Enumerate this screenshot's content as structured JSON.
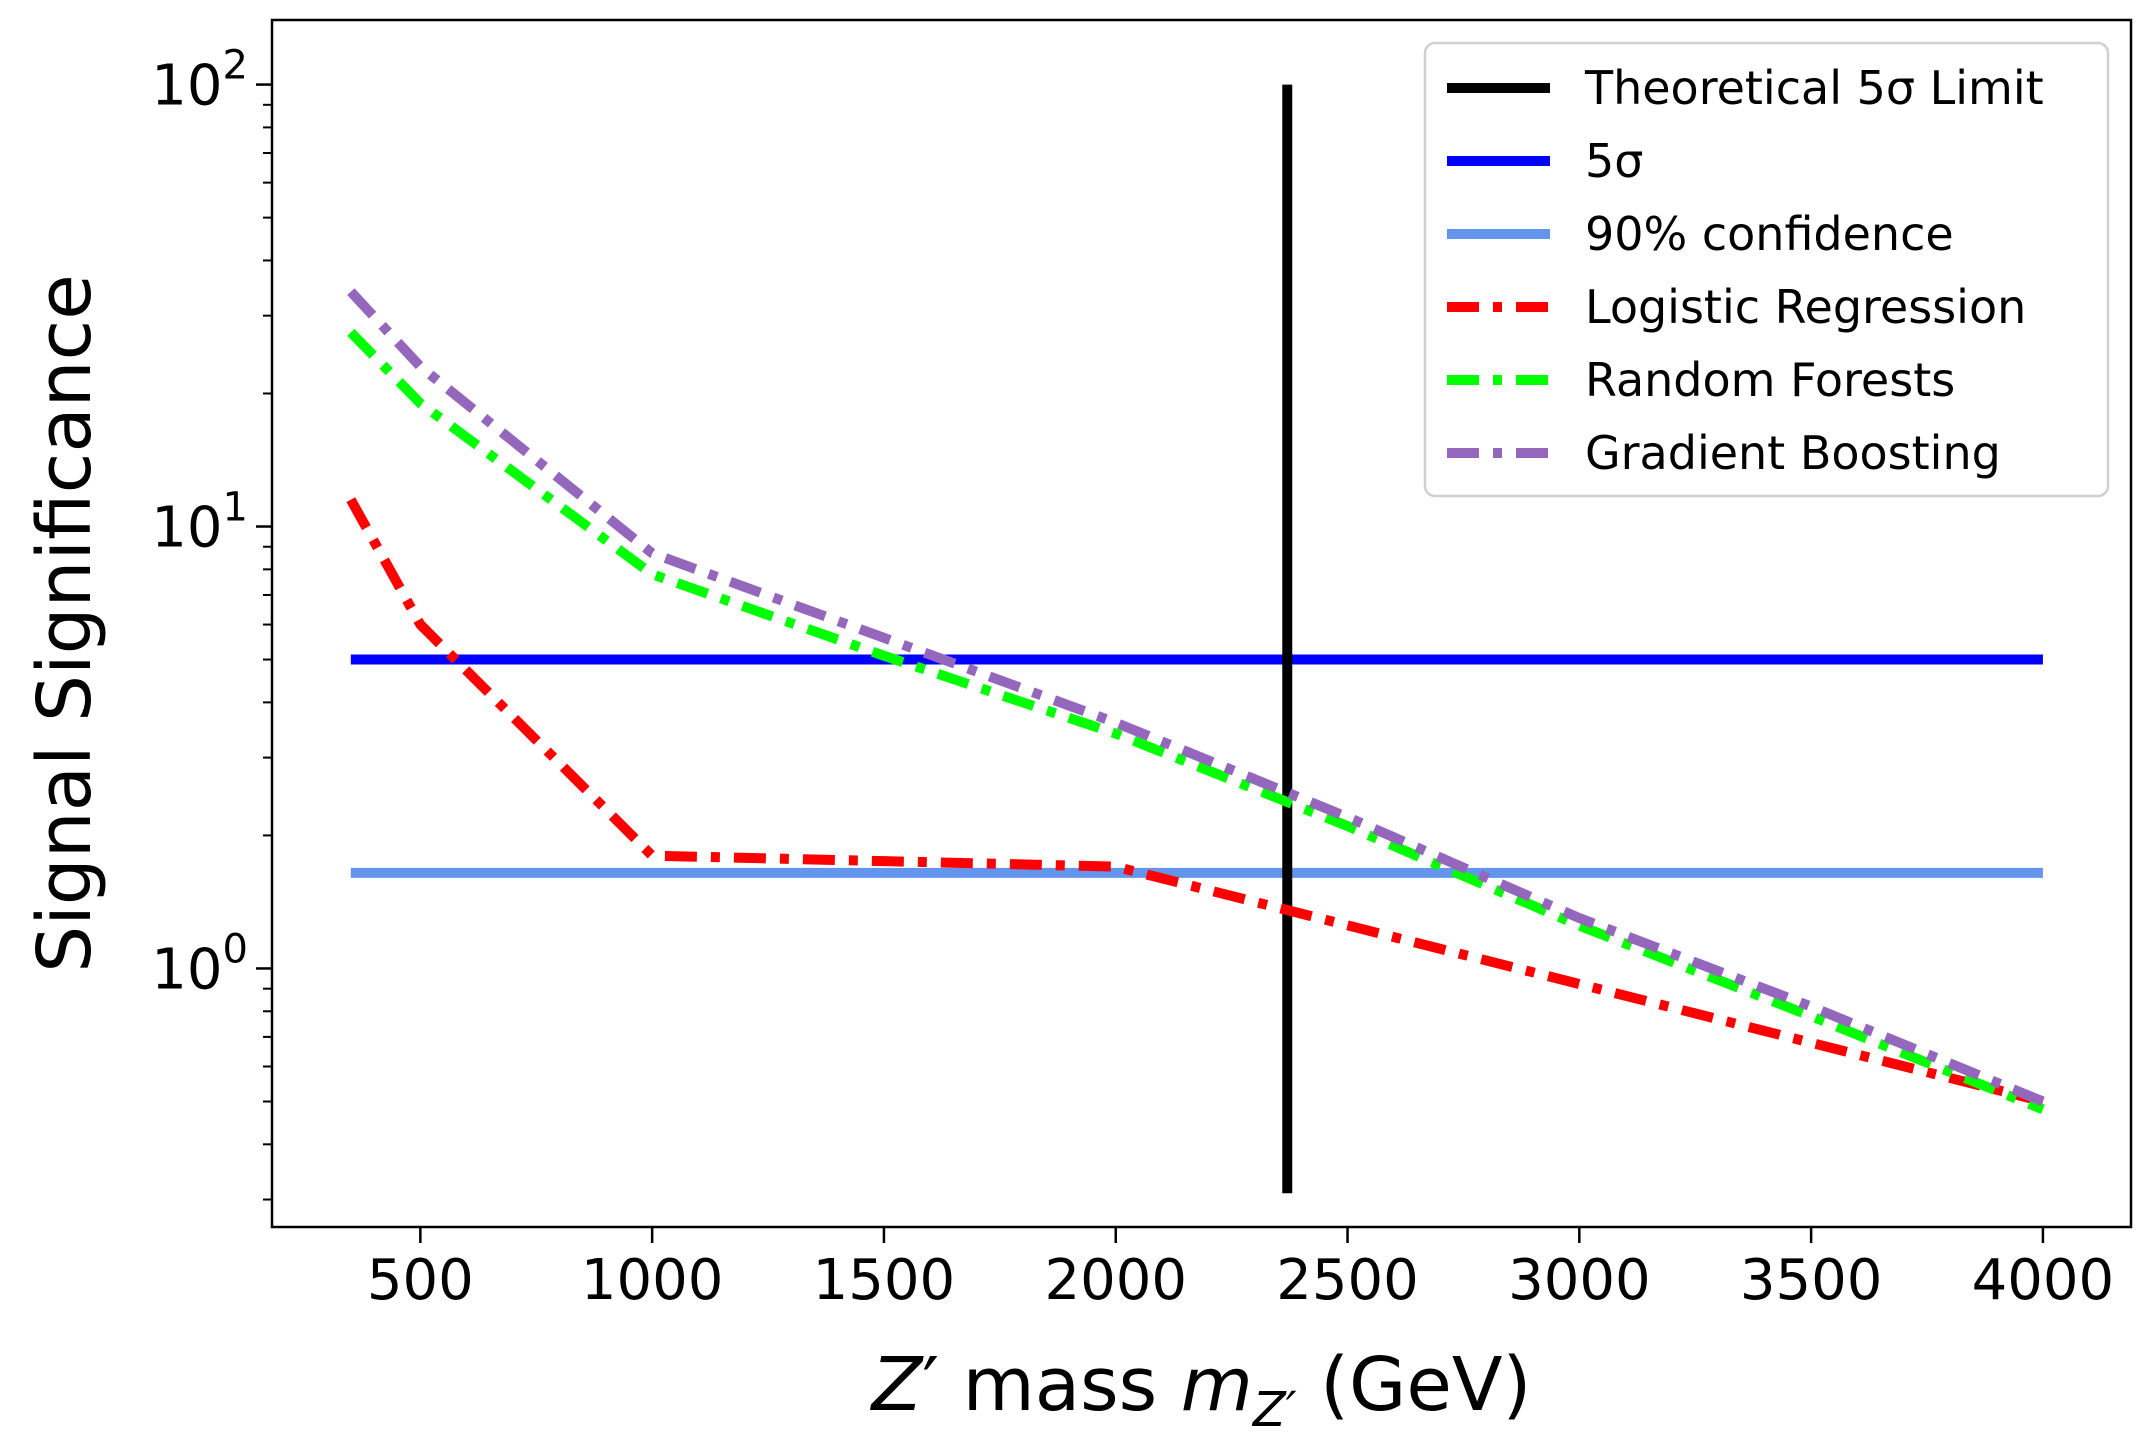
{
  "chart_data": {
    "type": "line",
    "xlabel": {
      "pre": "Z",
      "prime": "′",
      "mid": " mass ",
      "var": "m",
      "sub": "Z′",
      "post": " (GeV)"
    },
    "ylabel": "Signal Significance",
    "xscale": "linear",
    "yscale": "log",
    "xlim": [
      180,
      4190
    ],
    "ylim": [
      0.26,
      140
    ],
    "xticks": [
      500,
      1000,
      1500,
      2000,
      2500,
      3000,
      3500,
      4000
    ],
    "xtick_labels": [
      "500",
      "1000",
      "1500",
      "2000",
      "2500",
      "3000",
      "3500",
      "4000"
    ],
    "yticks": [
      {
        "value": 1,
        "base": "10",
        "exp": "0"
      },
      {
        "value": 10,
        "base": "10",
        "exp": "1"
      },
      {
        "value": 100,
        "base": "10",
        "exp": "2"
      }
    ],
    "grid": false,
    "legend_position": "top-right",
    "legend": [
      {
        "label": "Theoretical 5σ Limit",
        "color": "#000000",
        "style": "solid"
      },
      {
        "label": "5σ",
        "color": "#0000ff",
        "style": "solid"
      },
      {
        "label": "90% confidence",
        "color": "#6495ed",
        "style": "solid"
      },
      {
        "label": "Logistic Regression",
        "color": "#ff0000",
        "style": "dashdot"
      },
      {
        "label": "Random Forests",
        "color": "#00ff00",
        "style": "dashdot"
      },
      {
        "label": "Gradient Boosting",
        "color": "#9467bd",
        "style": "dashdot"
      }
    ],
    "vline": {
      "x": 2370,
      "y_range": [
        0.31,
        100
      ],
      "color": "#000000"
    },
    "hlines": [
      {
        "y": 5.0,
        "x_range": [
          350,
          4000
        ],
        "color": "#0000ff"
      },
      {
        "y": 1.645,
        "x_range": [
          350,
          4000
        ],
        "color": "#6495ed"
      }
    ],
    "series": [
      {
        "name": "Logistic Regression",
        "color": "#ff0000",
        "style": "dashdot",
        "x": [
          350,
          500,
          1000,
          2000,
          4000
        ],
        "y": [
          11.5,
          6.0,
          1.8,
          1.7,
          0.5
        ]
      },
      {
        "name": "Random Forests",
        "color": "#00ff00",
        "style": "dashdot",
        "x": [
          350,
          500,
          1000,
          1500,
          2000,
          2500,
          3000,
          3500,
          4000
        ],
        "y": [
          27.5,
          19.0,
          7.8,
          5.1,
          3.4,
          2.1,
          1.25,
          0.78,
          0.48
        ]
      },
      {
        "name": "Gradient Boosting",
        "color": "#9467bd",
        "style": "dashdot",
        "x": [
          350,
          500,
          1000,
          1500,
          2000,
          2500,
          3000,
          3500,
          4000
        ],
        "y": [
          34.0,
          23.0,
          8.7,
          5.6,
          3.6,
          2.2,
          1.3,
          0.82,
          0.5
        ]
      }
    ]
  }
}
